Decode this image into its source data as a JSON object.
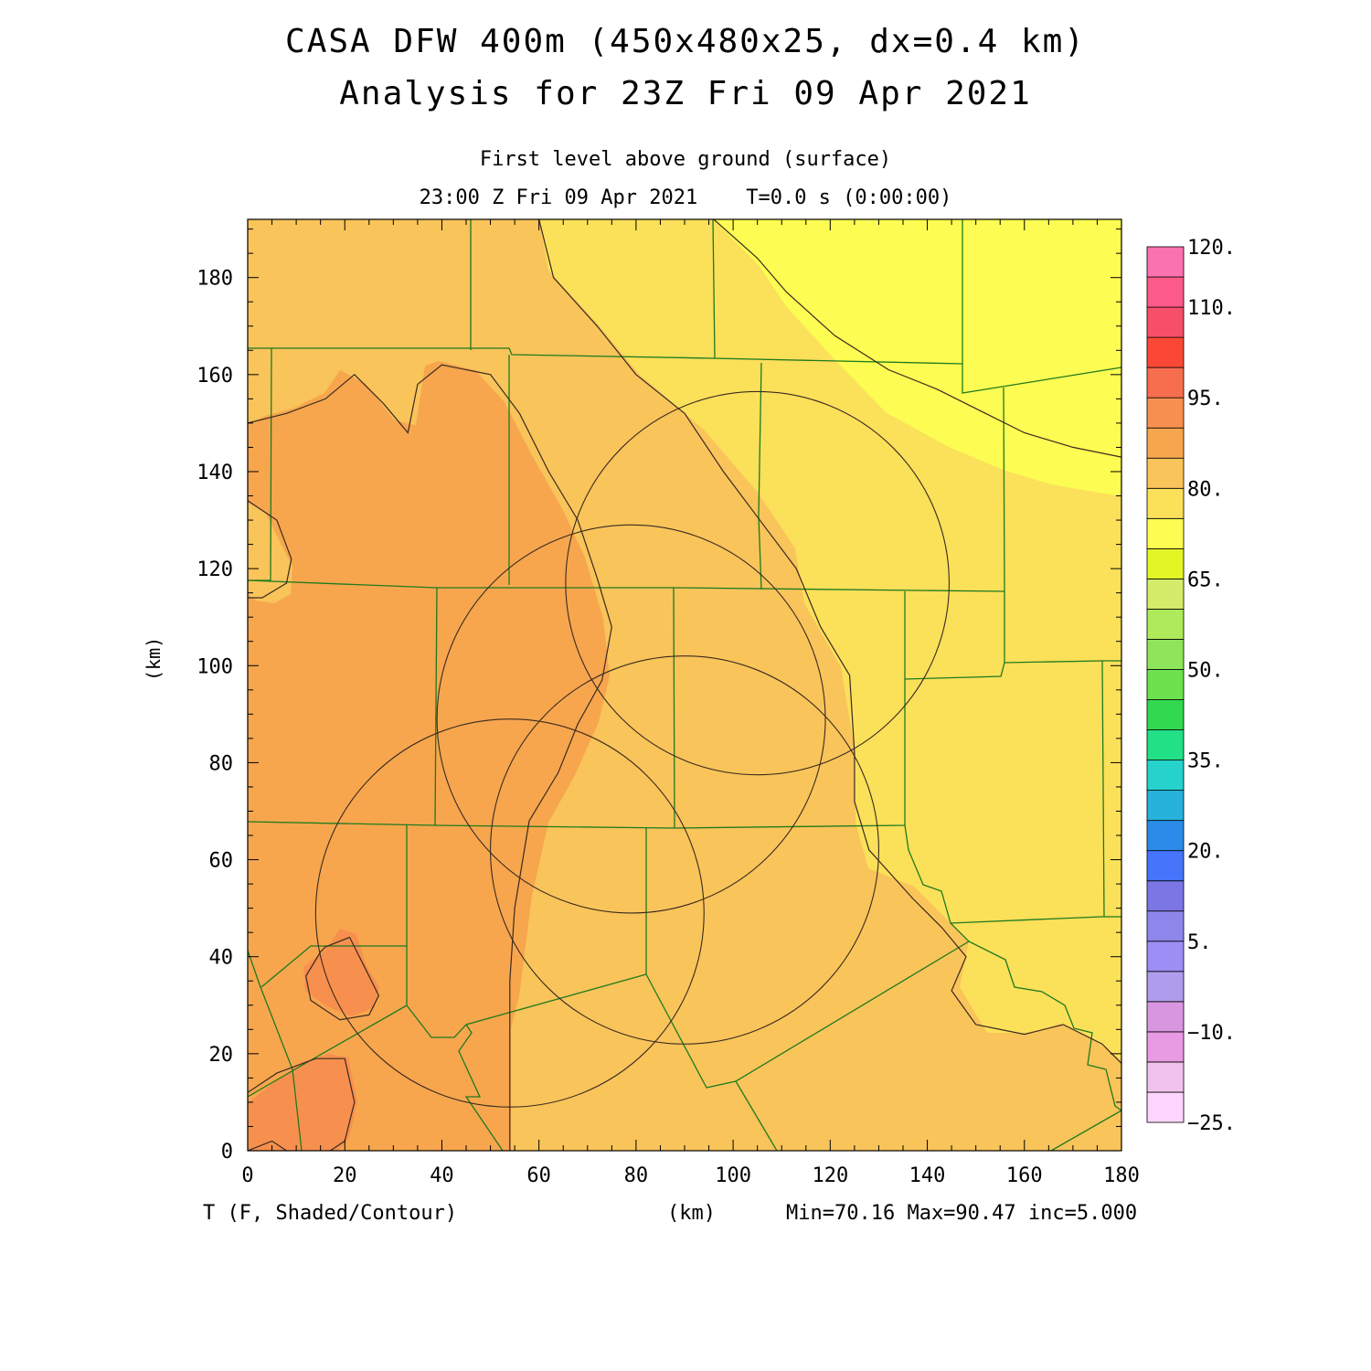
{
  "title": {
    "line1": "CASA DFW 400m (450x480x25, dx=0.4 km)",
    "line2": "Analysis for 23Z Fri 09 Apr 2021"
  },
  "subtitle": {
    "level": "First level above ground (surface)",
    "time": "23:00 Z Fri 09 Apr 2021    T=0.0 s (0:00:00)"
  },
  "axes": {
    "x_unit": "(km)",
    "y_unit": "(km)",
    "x_ticks": [
      "0",
      "20",
      "40",
      "60",
      "80",
      "100",
      "120",
      "140",
      "160",
      "180"
    ],
    "y_ticks": [
      "0",
      "20",
      "40",
      "60",
      "80",
      "100",
      "120",
      "140",
      "160",
      "180"
    ],
    "xlim": [
      0,
      180
    ],
    "ylim": [
      0,
      192
    ]
  },
  "footer": {
    "variable": "T (F, Shaded/Contour)",
    "stats": "Min=70.16 Max=90.47 inc=5.000"
  },
  "colorbar": {
    "labels": [
      {
        "value": 120,
        "text": "120."
      },
      {
        "value": 110,
        "text": "110."
      },
      {
        "value": 95,
        "text": "95."
      },
      {
        "value": 80,
        "text": "80."
      },
      {
        "value": 65,
        "text": "65."
      },
      {
        "value": 50,
        "text": "50."
      },
      {
        "value": 35,
        "text": "35."
      },
      {
        "value": 20,
        "text": "20."
      },
      {
        "value": 5,
        "text": "5."
      },
      {
        "value": -10,
        "text": "−10."
      },
      {
        "value": -25,
        "text": "−25."
      }
    ],
    "range": [
      -25,
      120
    ],
    "bins": [
      "#fcd6fc",
      "#f2c2ee",
      "#e89ae2",
      "#d896e0",
      "#b09cec",
      "#9c8ef4",
      "#8f86ec",
      "#7c76e4",
      "#4674fa",
      "#2a8ce8",
      "#26b2da",
      "#26d2cc",
      "#22e086",
      "#32d84e",
      "#6ce24e",
      "#8ee45a",
      "#aeea5a",
      "#d4ec6a",
      "#e2f626",
      "#fcfc52",
      "#fbe05a",
      "#f9c45a",
      "#f7a64e",
      "#f7904e",
      "#f76e4e",
      "#fb4836",
      "#f74e6a",
      "#fb5a8a",
      "#fb72b0"
    ]
  },
  "chart_data": {
    "type": "heatmap",
    "variable": "T (F, Shaded/Contour)",
    "min": 70.16,
    "max": 90.47,
    "increment": 5.0,
    "colors": {
      "band_70_75": "#fcfc52",
      "band_75_80": "#fbe05a",
      "band_80_85": "#f9c45a",
      "band_85_90": "#f7a64e",
      "band_90_95": "#f7904e",
      "contour": "#3a2a20",
      "county_border": "#1e7a1e",
      "radar_ring": "#3a2a20"
    },
    "radar_rings": [
      {
        "center_km": [
          105,
          117
        ],
        "radius_km": 39.5
      },
      {
        "center_km": [
          79,
          89
        ],
        "radius_km": 40
      },
      {
        "center_km": [
          90,
          62
        ],
        "radius_km": 40
      },
      {
        "center_km": [
          54,
          49
        ],
        "radius_km": 40
      }
    ],
    "contour_paths_km": [
      [
        [
          96,
          192
        ],
        [
          105,
          184
        ],
        [
          111,
          177
        ],
        [
          121,
          168
        ],
        [
          132,
          161
        ],
        [
          142,
          157
        ],
        [
          152,
          152
        ],
        [
          160,
          148
        ],
        [
          170,
          145
        ],
        [
          180,
          143
        ]
      ],
      [
        [
          60,
          192
        ],
        [
          63,
          180
        ],
        [
          72,
          170
        ],
        [
          80,
          160
        ],
        [
          90,
          152
        ],
        [
          98,
          140
        ],
        [
          107,
          128
        ],
        [
          113,
          120
        ],
        [
          118,
          108
        ],
        [
          124,
          98
        ],
        [
          125,
          82
        ],
        [
          125,
          72
        ],
        [
          128,
          62
        ],
        [
          137,
          52
        ],
        [
          143,
          46
        ],
        [
          148,
          40
        ],
        [
          145,
          33
        ],
        [
          150,
          26
        ],
        [
          160,
          24
        ],
        [
          168,
          26
        ],
        [
          176,
          22
        ],
        [
          180,
          18
        ]
      ],
      [
        [
          0,
          150
        ],
        [
          8,
          152
        ],
        [
          16,
          155
        ],
        [
          22,
          160
        ],
        [
          28,
          154
        ],
        [
          33,
          148
        ],
        [
          35,
          158
        ],
        [
          40,
          162
        ],
        [
          50,
          160
        ],
        [
          56,
          152
        ],
        [
          62,
          140
        ],
        [
          68,
          130
        ],
        [
          72,
          118
        ],
        [
          75,
          108
        ],
        [
          73,
          97
        ],
        [
          68,
          88
        ],
        [
          64,
          78
        ],
        [
          58,
          68
        ],
        [
          55,
          50
        ],
        [
          54,
          35
        ],
        [
          54,
          0
        ]
      ],
      [
        [
          0,
          134
        ],
        [
          6,
          130
        ],
        [
          9,
          122
        ],
        [
          8,
          117
        ],
        [
          3,
          114
        ],
        [
          0,
          114
        ]
      ],
      [
        [
          16,
          42
        ],
        [
          21,
          44
        ],
        [
          24,
          38
        ],
        [
          27,
          32
        ],
        [
          25,
          28
        ],
        [
          19,
          27
        ],
        [
          13,
          31
        ],
        [
          12,
          36
        ],
        [
          15,
          41
        ],
        [
          16,
          42
        ]
      ],
      [
        [
          0,
          12
        ],
        [
          6,
          16
        ],
        [
          14,
          19
        ],
        [
          20,
          19
        ],
        [
          22,
          10
        ],
        [
          20,
          2
        ],
        [
          17,
          0
        ]
      ],
      [
        [
          0,
          0
        ],
        [
          5,
          2
        ],
        [
          8,
          0
        ]
      ]
    ]
  }
}
